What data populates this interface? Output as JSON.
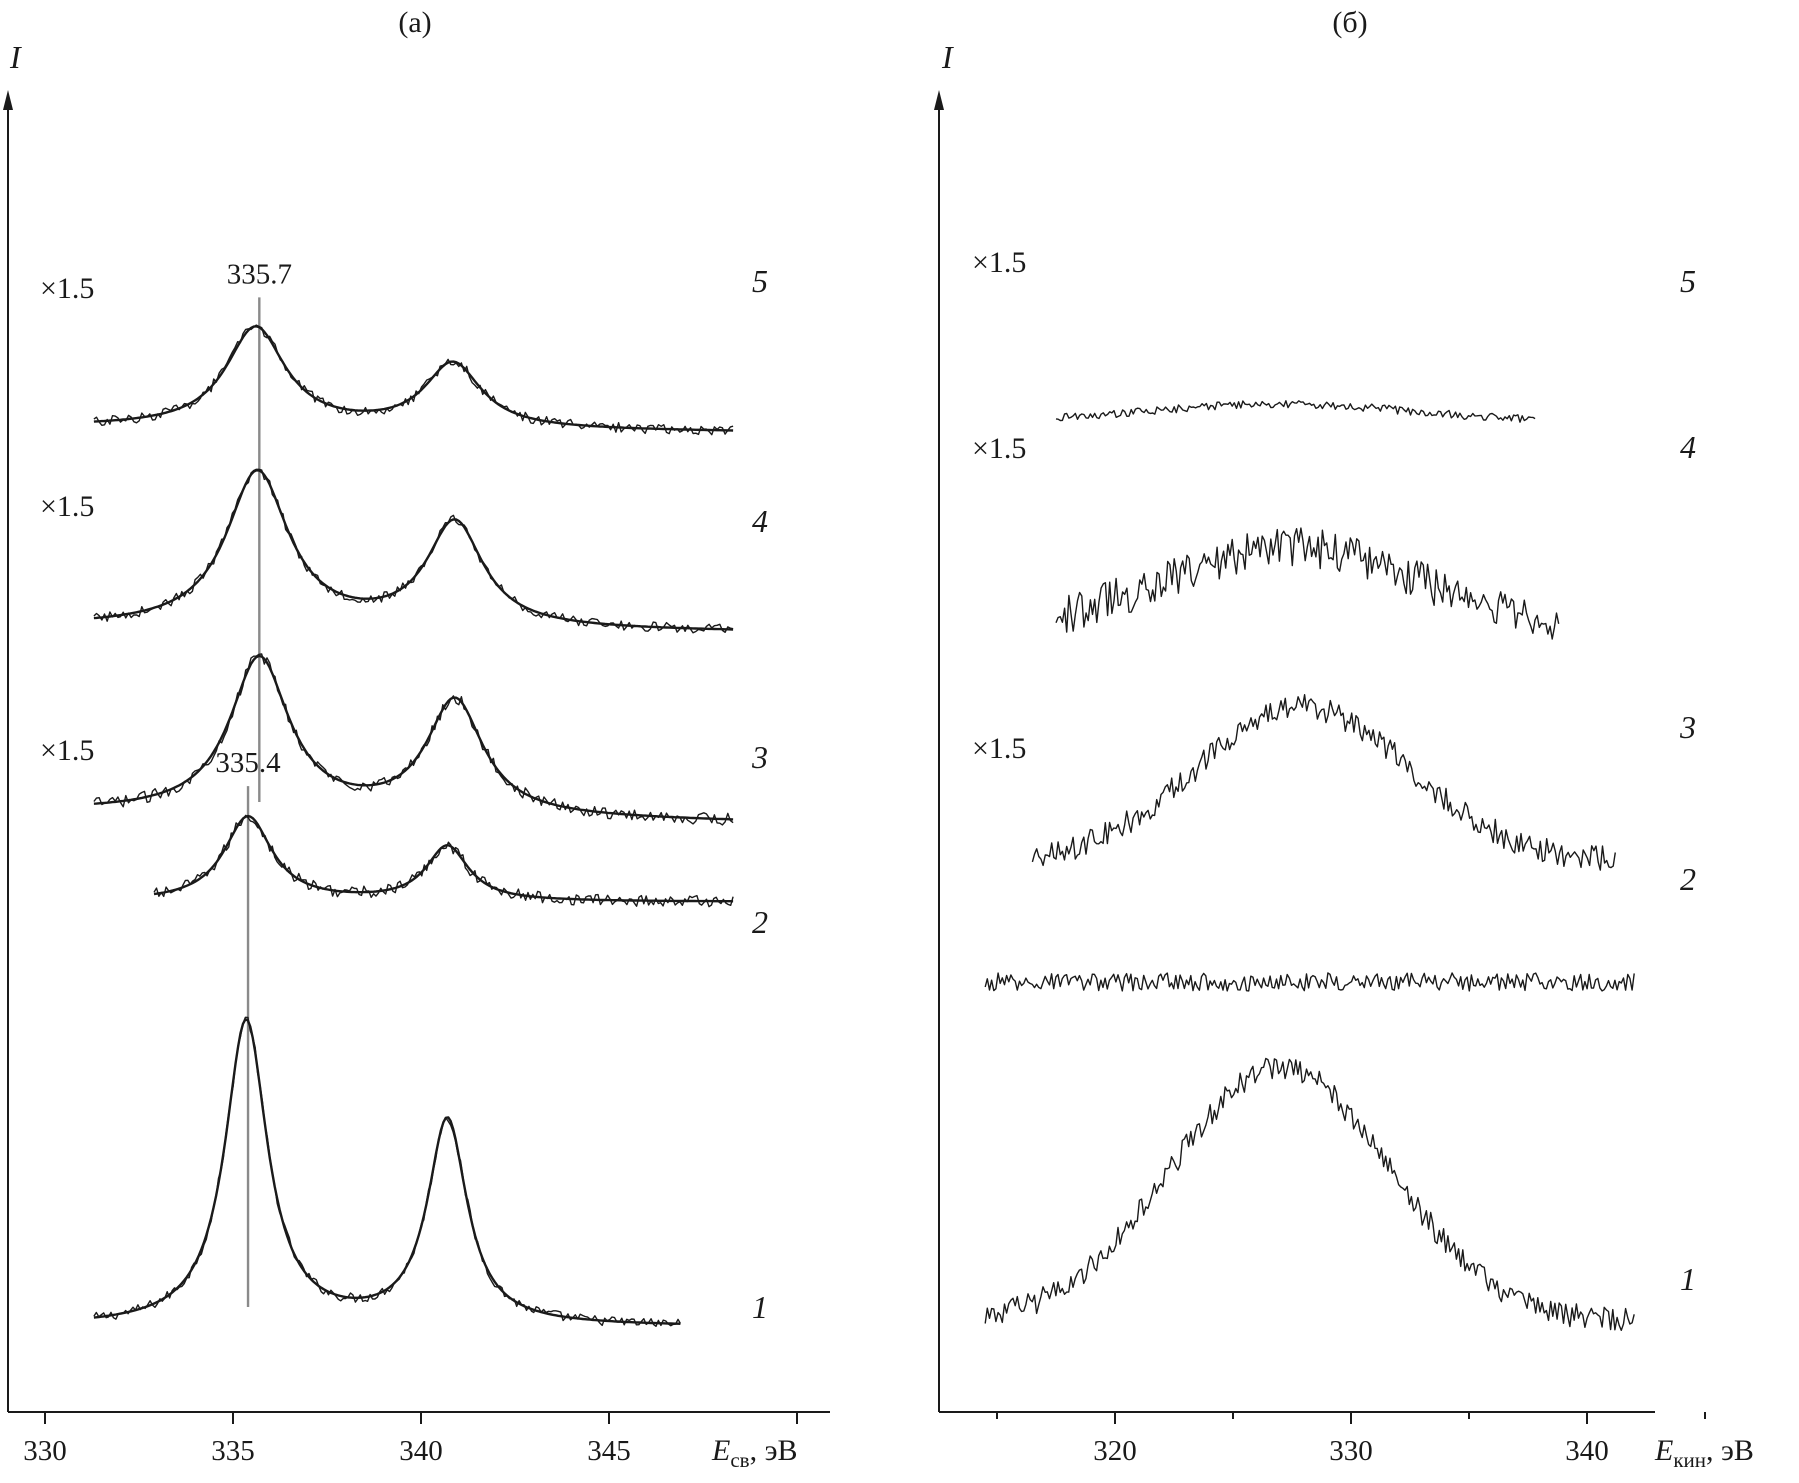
{
  "chart_data": [
    {
      "type": "line",
      "panel_label": "(а)",
      "ylabel": "I",
      "xlabel_main": "E",
      "xlabel_sub": "св",
      "xlabel_unit": ", эВ",
      "xlim": [
        329,
        350
      ],
      "xticks": [
        330,
        335,
        340,
        345
      ],
      "reference_lines": [
        {
          "x": 335.7,
          "label": "335.7",
          "from_series": "3",
          "to_series": "5"
        },
        {
          "x": 335.4,
          "label": "335.4",
          "from_series": "1",
          "to_series": "2"
        }
      ],
      "series": [
        {
          "name": "1",
          "multiplier": "",
          "x_range": [
            331.3,
            346.9
          ],
          "baseline": 0.25,
          "background_slope": 0.0,
          "peaks": [
            {
              "center": 335.35,
              "height": 3.05,
              "width": 0.75
            },
            {
              "center": 340.7,
              "height": 2.05,
              "width": 0.7
            }
          ],
          "noise": 0.05
        },
        {
          "name": "2",
          "multiplier": "",
          "x_range": [
            332.9,
            348.3
          ],
          "baseline": 4.5,
          "background_slope": 0.0,
          "peaks": [
            {
              "center": 335.4,
              "height": 0.85,
              "width": 0.85
            },
            {
              "center": 340.7,
              "height": 0.55,
              "width": 0.75
            }
          ],
          "noise": 0.06
        },
        {
          "name": "3",
          "multiplier": "×1.5",
          "x_range": [
            331.3,
            348.3
          ],
          "baseline": 5.3,
          "background_slope": 0.02,
          "peaks": [
            {
              "center": 335.7,
              "height": 1.55,
              "width": 1.05
            },
            {
              "center": 340.9,
              "height": 1.15,
              "width": 1.0
            }
          ],
          "noise": 0.06
        },
        {
          "name": "4",
          "multiplier": "×1.5",
          "x_range": [
            331.3,
            348.3
          ],
          "baseline": 7.2,
          "background_slope": 0.01,
          "peaks": [
            {
              "center": 335.65,
              "height": 1.55,
              "width": 1.1
            },
            {
              "center": 340.9,
              "height": 1.05,
              "width": 1.0
            }
          ],
          "noise": 0.05
        },
        {
          "name": "5",
          "multiplier": "×1.5",
          "x_range": [
            331.3,
            348.3
          ],
          "baseline": 9.2,
          "background_slope": 0.01,
          "peaks": [
            {
              "center": 335.6,
              "height": 1.0,
              "width": 1.05
            },
            {
              "center": 340.85,
              "height": 0.65,
              "width": 1.0
            }
          ],
          "noise": 0.05
        }
      ]
    },
    {
      "type": "line",
      "panel_label": "(б)",
      "ylabel": "I",
      "xlabel_main": "E",
      "xlabel_sub": "кин",
      "xlabel_unit": ", эВ",
      "xlim": [
        312.5,
        346.5
      ],
      "xticks": [
        320,
        330,
        340
      ],
      "series": [
        {
          "name": "1",
          "multiplier": "",
          "x_range": [
            314.5,
            342
          ],
          "baseline": 0.3,
          "amplitude": 2.55,
          "center": 327,
          "width": 4.6,
          "noise": 0.12
        },
        {
          "name": "2",
          "multiplier": "",
          "x_range": [
            314.5,
            342
          ],
          "baseline": 3.7,
          "amplitude": 0.0,
          "center": 327,
          "width": 4.0,
          "noise": 0.09
        },
        {
          "name": "3",
          "multiplier": "×1.5",
          "x_range": [
            316.5,
            341.2
          ],
          "baseline": 4.9,
          "amplitude": 1.55,
          "center": 328,
          "width": 4.5,
          "noise": 0.13
        },
        {
          "name": "4",
          "multiplier": "×1.5",
          "x_range": [
            317.5,
            338.8
          ],
          "baseline": 7.2,
          "amplitude": 0.85,
          "center": 327.5,
          "width": 5.5,
          "noise": 0.2
        },
        {
          "name": "5",
          "multiplier": "×1.5",
          "x_range": [
            317.5,
            337.8
          ],
          "baseline": 9.3,
          "amplitude": 0.18,
          "center": 327,
          "width": 5.5,
          "noise": 0.04
        }
      ]
    }
  ]
}
